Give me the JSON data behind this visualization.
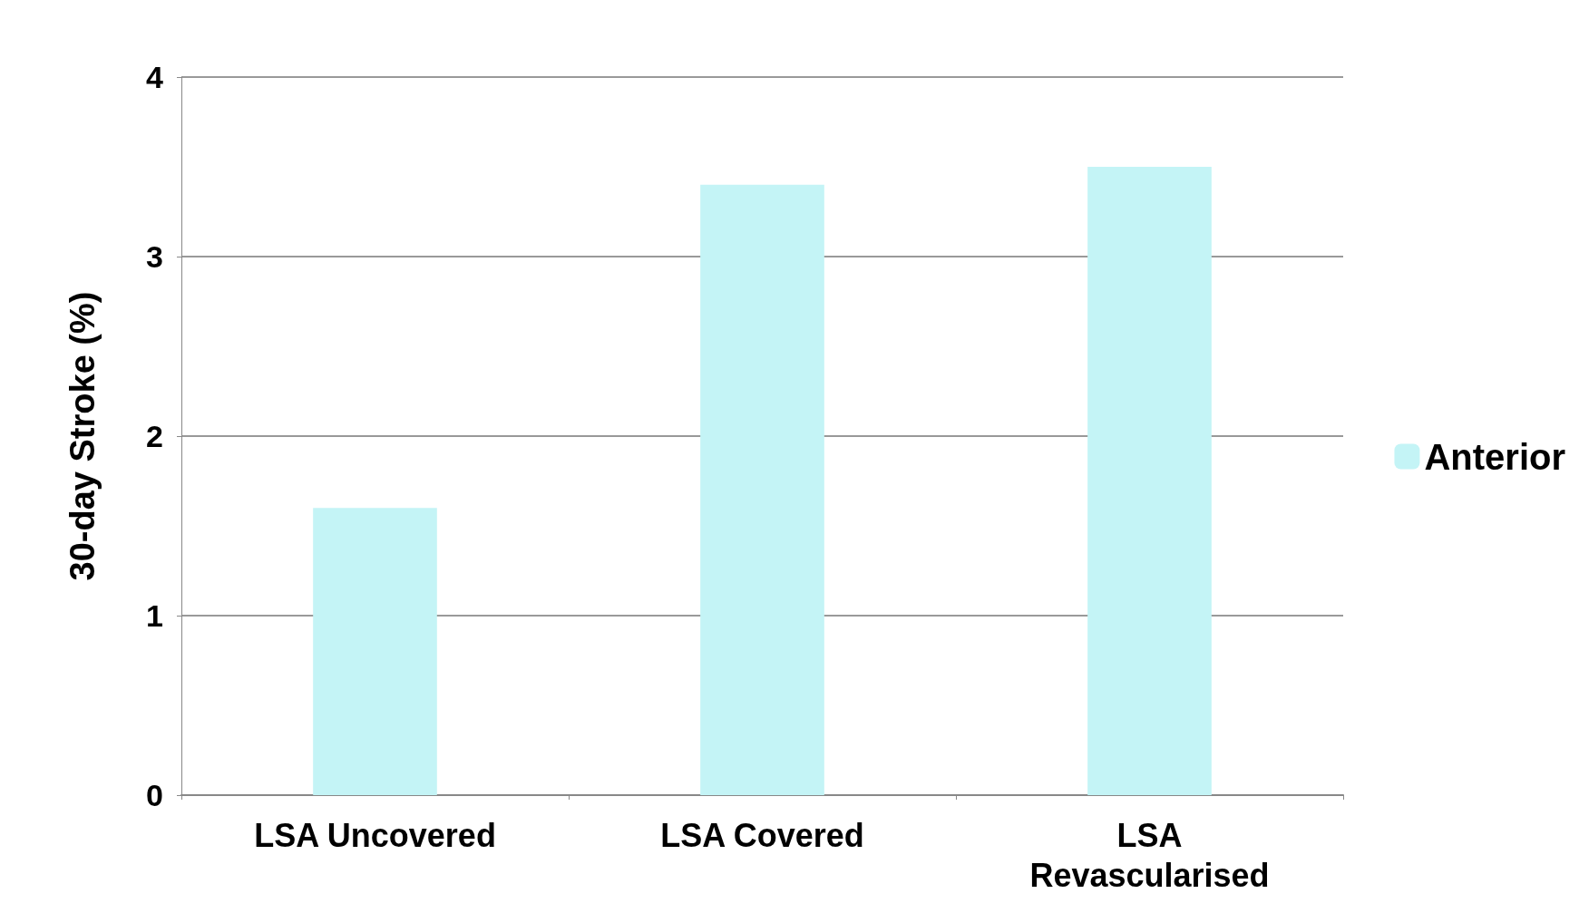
{
  "chart_data": {
    "type": "bar",
    "ylabel": "30-day Stroke (%)",
    "categories": [
      "LSA Uncovered",
      "LSA Covered",
      "LSA\nRevascularised"
    ],
    "series": [
      {
        "name": "Anterior",
        "color": "#c4f4f6",
        "values": [
          1.6,
          3.4,
          3.5
        ]
      }
    ],
    "ylim": [
      0,
      4
    ],
    "yticks": [
      0,
      1,
      2,
      3,
      4
    ],
    "grid": "y",
    "legend": "right"
  }
}
